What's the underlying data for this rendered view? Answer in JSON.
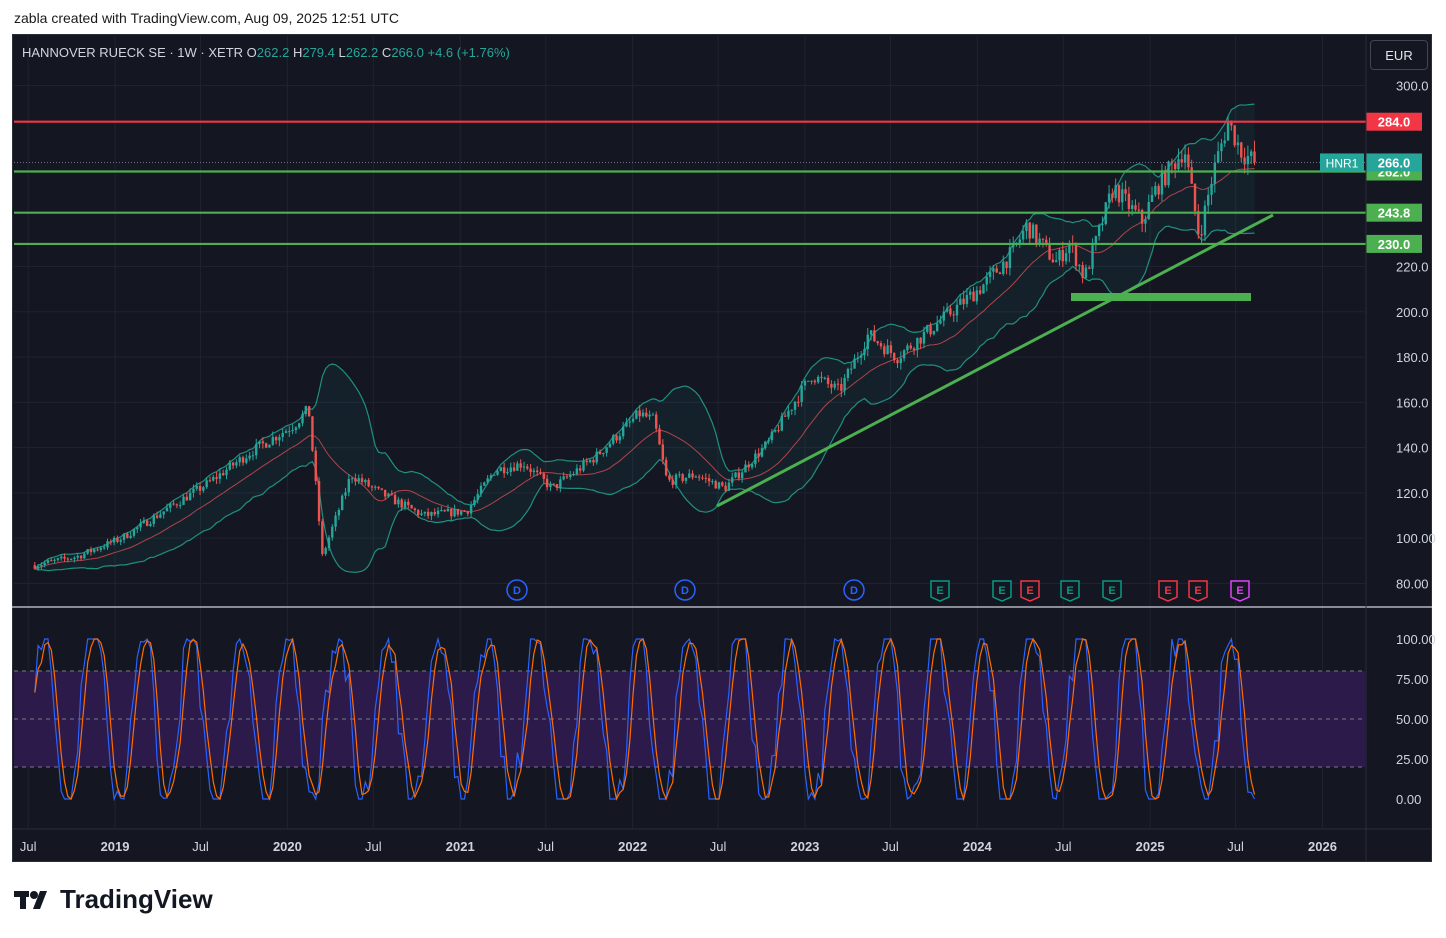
{
  "caption": "zabla created with TradingView.com, Aug 09, 2025 12:51 UTC",
  "header": {
    "symbol": "HANNOVER RUECK SE · 1W · XETR",
    "open_label": "O",
    "open": "262.2",
    "high_label": "H",
    "high": "279.4",
    "low_label": "L",
    "low": "262.2",
    "close_label": "C",
    "close": "266.0",
    "change": "+4.6 (+1.76%)"
  },
  "currency": "EUR",
  "brand": "TradingView",
  "colors": {
    "background": "#141722",
    "up": "#26a69a",
    "down": "#ef5350",
    "resistance": "#f23645",
    "support": "#4caf50",
    "rsi_zone": "#2e1b4f",
    "stoch_k": "#2962ff",
    "stoch_d": "#ff6d00",
    "dividend": "#2962ff",
    "earnings_up": "#089981",
    "earnings_down": "#f23645",
    "earnings_next": "#e040fb"
  },
  "chart_data": [
    {
      "type": "candlestick",
      "ylim": [
        75,
        318
      ],
      "x_ticks": [
        "Jul",
        "2019",
        "Jul",
        "2020",
        "Jul",
        "2021",
        "Jul",
        "2022",
        "Jul",
        "2023",
        "Jul",
        "2024",
        "Jul",
        "2025",
        "Jul",
        "2026"
      ],
      "y_ticks": [
        "80.00",
        "100.00",
        "120.0",
        "140.0",
        "160.0",
        "180.0",
        "200.0",
        "220.0",
        "300.0"
      ],
      "price_series": {
        "name": "HNR1",
        "dates": [
          "2018-07",
          "2018-10",
          "2019-01",
          "2019-04",
          "2019-07",
          "2019-10",
          "2020-01",
          "2020-02",
          "2020-03",
          "2020-05",
          "2020-07",
          "2020-10",
          "2021-01",
          "2021-03",
          "2021-05",
          "2021-07",
          "2021-10",
          "2022-01",
          "2022-02",
          "2022-03",
          "2022-05",
          "2022-07",
          "2022-10",
          "2023-01",
          "2023-03",
          "2023-05",
          "2023-07",
          "2023-10",
          "2024-01",
          "2024-03",
          "2024-04",
          "2024-06",
          "2024-07",
          "2024-08",
          "2024-10",
          "2024-12",
          "2025-01",
          "2025-03",
          "2025-04",
          "2025-05",
          "2025-06",
          "2025-07",
          "2025-08"
        ],
        "close": [
          88,
          92,
          100,
          112,
          124,
          138,
          150,
          157,
          92,
          128,
          120,
          110,
          112,
          130,
          133,
          122,
          136,
          155,
          152,
          125,
          128,
          122,
          142,
          172,
          165,
          190,
          180,
          196,
          212,
          226,
          238,
          222,
          230,
          215,
          255,
          240,
          255,
          272,
          233,
          262,
          284,
          270,
          266
        ]
      },
      "middle_band_name": "",
      "upper_band_name": "",
      "lower_band_name": ""
    },
    {
      "type": "line",
      "ylim": [
        -10,
        110
      ],
      "y_ticks": [
        "100.00",
        "75.00",
        "50.00",
        "25.00",
        "0.00"
      ],
      "overbought": 80,
      "oversold": 20,
      "midline": 50,
      "series": [
        {
          "name": "",
          "color": "#2962ff"
        },
        {
          "name": "",
          "color": "#ff6d00"
        }
      ]
    }
  ],
  "levels": [
    {
      "label": "284.0",
      "value": 284,
      "color": "#f23645"
    },
    {
      "label": "262.0",
      "value": 262,
      "color": "#4caf50"
    },
    {
      "label": "243.8",
      "value": 243.8,
      "color": "#4caf50"
    },
    {
      "label": "230.0",
      "value": 230,
      "color": "#4caf50"
    }
  ],
  "last_price_label": {
    "symbol": "HNR1",
    "value": "266.0"
  },
  "events": [
    "D",
    "D",
    "D",
    "E",
    "E",
    "E",
    "E",
    "E",
    "E",
    "E",
    "E"
  ]
}
